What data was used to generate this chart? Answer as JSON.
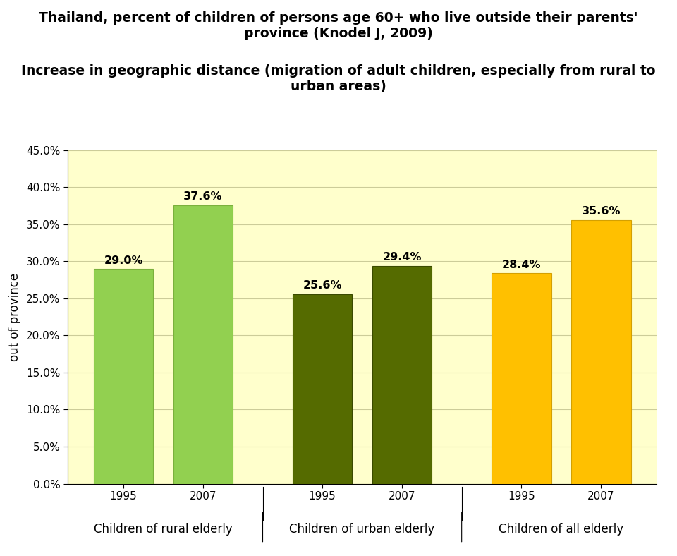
{
  "title_line1": "Thailand, percent of children of persons age 60+ who live outside their parents'",
  "title_line2": "province (Knodel J, 2009)",
  "title_line3": "Increase in geographic distance (migration of adult children, especially from rural to",
  "title_line4": "urban areas)",
  "x_labels_year": [
    "1995",
    "2007",
    "1995",
    "2007",
    "1995",
    "2007"
  ],
  "x_labels_group": [
    "Children of rural elderly",
    "Children of urban elderly",
    "Children of all elderly"
  ],
  "values": [
    29.0,
    37.6,
    25.6,
    29.4,
    28.4,
    35.6
  ],
  "bar_colors": [
    "#92D050",
    "#92D050",
    "#556B00",
    "#556B00",
    "#FFC000",
    "#FFC000"
  ],
  "bar_edge_colors": [
    "#7BB03C",
    "#7BB03C",
    "#3A4A00",
    "#3A4A00",
    "#D4A000",
    "#D4A000"
  ],
  "value_labels": [
    "29.0%",
    "37.6%",
    "25.6%",
    "29.4%",
    "28.4%",
    "35.6%"
  ],
  "ylabel": "out of province",
  "ylim": [
    0,
    45
  ],
  "yticks": [
    0.0,
    5.0,
    10.0,
    15.0,
    20.0,
    25.0,
    30.0,
    35.0,
    40.0,
    45.0
  ],
  "ytick_labels": [
    "0.0%",
    "5.0%",
    "10.0%",
    "15.0%",
    "20.0%",
    "25.0%",
    "30.0%",
    "35.0%",
    "40.0%",
    "45.0%"
  ],
  "background_color": "#FFFFCC",
  "title_fontsize": 13.5,
  "label_fontsize": 12,
  "tick_fontsize": 11,
  "value_fontsize": 11.5,
  "group_label_fontsize": 12
}
